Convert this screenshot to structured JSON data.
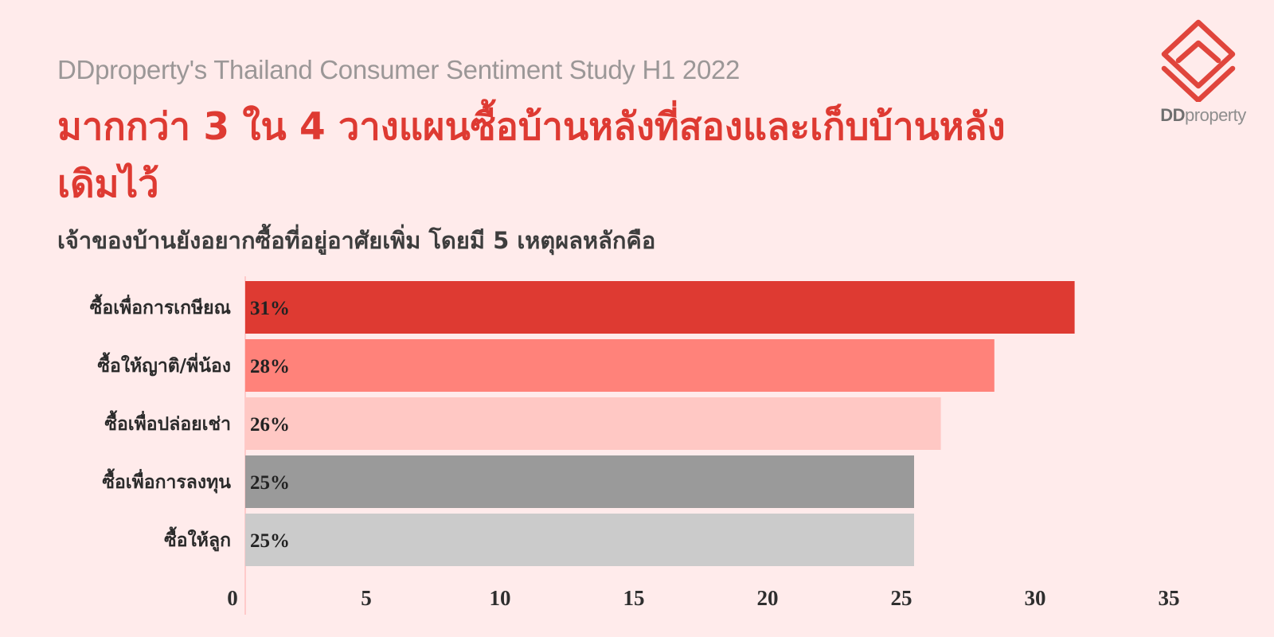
{
  "header": {
    "study": "DDproperty's Thailand Consumer Sentiment Study H1 2022",
    "title": "มากกว่า 3 ใน 4 วางแผนซื้อบ้านหลังที่สองและเก็บบ้านหลังเดิมไว้",
    "subtitle": "เจ้าของบ้านยังอยากซื้อที่อยู่อาศัยเพิ่ม โดยมี 5 เหตุผลหลักคือ"
  },
  "logo": {
    "text_bold": "DD",
    "text_rest": "property",
    "icon": "house-logo-icon"
  },
  "chart_data": {
    "type": "bar",
    "orientation": "horizontal",
    "categories": [
      "ซื้อเพื่อการเกษียณ",
      "ซื้อให้ญาติ/พี่น้อง",
      "ซื้อเพื่อปล่อยเช่า",
      "ซื้อเพื่อการลงทุน",
      "ซื้อให้ลูก"
    ],
    "values": [
      31,
      28,
      26,
      25,
      25
    ],
    "value_labels": [
      "31%",
      "28%",
      "26%",
      "25%",
      "25%"
    ],
    "colors": [
      "#DE3A32",
      "#FF827A",
      "#FFC8C4",
      "#9A9A9A",
      "#CBCBCB"
    ],
    "xlim": [
      0,
      35
    ],
    "xticks": [
      0,
      5,
      10,
      15,
      20,
      25,
      30,
      35
    ],
    "grid": false
  }
}
